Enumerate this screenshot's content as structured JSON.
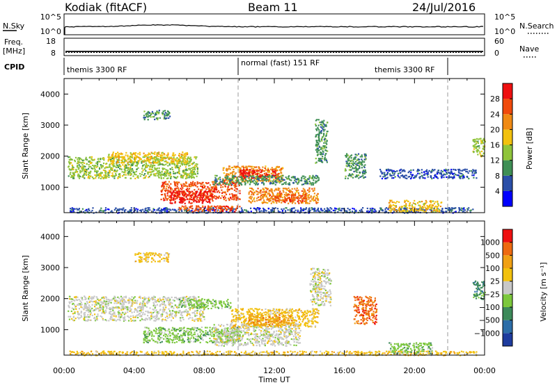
{
  "header": {
    "station": "Kodiak (fitACF)",
    "beam": "Beam 11",
    "date": "24/Jul/2016"
  },
  "panels": {
    "nsky_label": "N.Sky",
    "nsky_ticks": [
      "10^5",
      "10^0"
    ],
    "nsearch_label": "N.Search",
    "nsearch_ticks": [
      "10^5",
      "10^0"
    ],
    "freq_label": "Freq.",
    "freq_unit": "[MHz]",
    "freq_ticks": [
      "18",
      "8"
    ],
    "nave_label": "Nave",
    "nave_ticks": [
      "60",
      "0"
    ],
    "cpid_label": "CPID",
    "cpid_segments": [
      "themis 3300 RF",
      "normal (fast) 151 RF",
      "themis 3300 RF"
    ]
  },
  "colorbars": {
    "power": {
      "label": "Power [dB]",
      "ticks": [
        "28",
        "24",
        "20",
        "16",
        "12",
        "8",
        "4"
      ],
      "colors": [
        "#0000ff",
        "#2b4fa8",
        "#3f8f55",
        "#8fc43a",
        "#f2c10e",
        "#f08a14",
        "#f04a0c",
        "#ee1010"
      ]
    },
    "velocity": {
      "label": "Velocity [m s⁻¹]",
      "ticks": [
        "1000",
        "500",
        "100",
        "25",
        "−25",
        "−100",
        "−500",
        "−1000"
      ],
      "colors": [
        "#1e3c9e",
        "#2d6ea8",
        "#3d8a5a",
        "#7cc83c",
        "#c8c8c8",
        "#f2c10e",
        "#f0a014",
        "#ee6a10",
        "#ee1010"
      ]
    }
  },
  "chart_data": [
    {
      "type": "heatmap",
      "title": "",
      "quantity": "Power",
      "ylabel": "Slant Range [km]",
      "xlabel": "Time UT",
      "xlim": [
        "00:00",
        "24:00"
      ],
      "ylim": [
        180,
        4500
      ],
      "yticks": [
        "4000",
        "3000",
        "2000",
        "1000"
      ],
      "xticks": [
        "00:00",
        "04:00",
        "08:00",
        "12:00",
        "16:00",
        "20:00",
        "00:00"
      ],
      "patches": [
        {
          "t0": 0.2,
          "t1": 7.6,
          "r0": 1300,
          "r1": 2000,
          "level": 3
        },
        {
          "t0": 2.5,
          "t1": 7.0,
          "r0": 1800,
          "r1": 2150,
          "level": 4
        },
        {
          "t0": 5.5,
          "t1": 10.0,
          "r0": 600,
          "r1": 1200,
          "level": 6
        },
        {
          "t0": 6.0,
          "t1": 8.5,
          "r0": 500,
          "r1": 900,
          "level": 7
        },
        {
          "t0": 9.0,
          "t1": 12.5,
          "r0": 1200,
          "r1": 1700,
          "level": 5
        },
        {
          "t0": 10.0,
          "t1": 12.2,
          "r0": 1300,
          "r1": 1600,
          "level": 7
        },
        {
          "t0": 10.5,
          "t1": 14.5,
          "r0": 500,
          "r1": 1000,
          "level": 5
        },
        {
          "t0": 12.0,
          "t1": 13.8,
          "r0": 550,
          "r1": 800,
          "level": 6
        },
        {
          "t0": 8.5,
          "t1": 14.5,
          "r0": 1100,
          "r1": 1400,
          "level": 2
        },
        {
          "t0": 0.3,
          "t1": 23.5,
          "r0": 190,
          "r1": 360,
          "level": 1
        },
        {
          "t0": 6.5,
          "t1": 10.0,
          "r0": 230,
          "r1": 420,
          "level": 6
        },
        {
          "t0": 14.3,
          "t1": 15.0,
          "r0": 1800,
          "r1": 3200,
          "level": 2
        },
        {
          "t0": 16.0,
          "t1": 17.2,
          "r0": 1300,
          "r1": 2100,
          "level": 2
        },
        {
          "t0": 18.5,
          "t1": 21.5,
          "r0": 220,
          "r1": 600,
          "level": 4
        },
        {
          "t0": 18.0,
          "t1": 23.5,
          "r0": 1300,
          "r1": 1600,
          "level": 1
        },
        {
          "t0": 4.5,
          "t1": 6.0,
          "r0": 3200,
          "r1": 3500,
          "level": 2
        },
        {
          "t0": 23.3,
          "t1": 24.0,
          "r0": 2000,
          "r1": 2600,
          "level": 3
        }
      ]
    },
    {
      "type": "heatmap",
      "title": "",
      "quantity": "Velocity",
      "ylabel": "Slant Range [km]",
      "xlabel": "Time UT",
      "xlim": [
        "00:00",
        "24:00"
      ],
      "ylim": [
        180,
        4500
      ],
      "yticks": [
        "4000",
        "3000",
        "2000",
        "1000"
      ],
      "xticks": [
        "00:00",
        "04:00",
        "08:00",
        "12:00",
        "16:00",
        "20:00",
        "00:00"
      ],
      "patches": [
        {
          "t0": 0.2,
          "t1": 8.0,
          "r0": 1300,
          "r1": 2100,
          "level": 4
        },
        {
          "t0": 6.5,
          "t1": 9.5,
          "r0": 1700,
          "r1": 2000,
          "level": 3
        },
        {
          "t0": 4.5,
          "t1": 10.0,
          "r0": 600,
          "r1": 1100,
          "level": 3
        },
        {
          "t0": 8.5,
          "t1": 13.5,
          "r0": 500,
          "r1": 1200,
          "level": 4
        },
        {
          "t0": 9.5,
          "t1": 14.5,
          "r0": 1100,
          "r1": 1700,
          "level": 5
        },
        {
          "t0": 10.5,
          "t1": 13.0,
          "r0": 1150,
          "r1": 1500,
          "level": 6
        },
        {
          "t0": 0.3,
          "t1": 23.5,
          "r0": 190,
          "r1": 330,
          "level": 5
        },
        {
          "t0": 16.5,
          "t1": 17.8,
          "r0": 1200,
          "r1": 2100,
          "level": 7
        },
        {
          "t0": 14.0,
          "t1": 15.2,
          "r0": 1800,
          "r1": 3000,
          "level": 4
        },
        {
          "t0": 18.5,
          "t1": 21.0,
          "r0": 250,
          "r1": 600,
          "level": 3
        },
        {
          "t0": 4.0,
          "t1": 6.0,
          "r0": 3200,
          "r1": 3500,
          "level": 5
        },
        {
          "t0": 23.3,
          "t1": 24.0,
          "r0": 2000,
          "r1": 2600,
          "level": 2
        }
      ]
    }
  ]
}
